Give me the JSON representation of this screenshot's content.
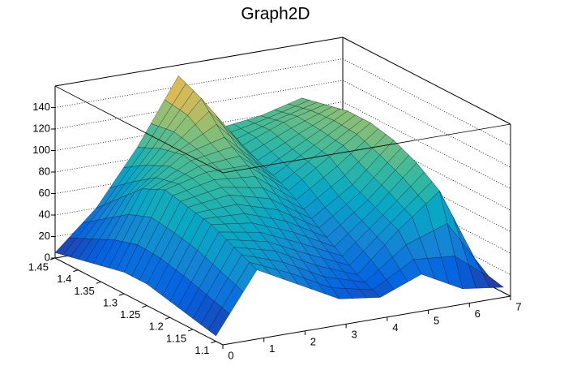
{
  "chart_data": {
    "type": "surface",
    "title": "Graph2D",
    "x": [
      0,
      1,
      2,
      3,
      4,
      5,
      6,
      7
    ],
    "y": [
      1.1,
      1.15,
      1.2,
      1.25,
      1.3,
      1.35,
      1.4,
      1.45
    ],
    "z": [
      [
        5,
        60,
        40,
        20,
        15,
        30,
        10,
        5
      ],
      [
        10,
        70,
        60,
        40,
        25,
        60,
        90,
        10
      ],
      [
        15,
        80,
        75,
        60,
        40,
        70,
        105,
        20
      ],
      [
        20,
        85,
        90,
        80,
        55,
        80,
        115,
        30
      ],
      [
        20,
        90,
        100,
        100,
        70,
        95,
        120,
        40
      ],
      [
        15,
        80,
        105,
        115,
        80,
        100,
        120,
        45
      ],
      [
        10,
        60,
        100,
        140,
        90,
        105,
        115,
        50
      ],
      [
        5,
        40,
        90,
        150,
        95,
        100,
        110,
        50
      ]
    ],
    "xlim": [
      0,
      7
    ],
    "ylim": [
      1.085,
      1.45
    ],
    "zlim": [
      0,
      160
    ],
    "xticks": [
      0,
      1,
      2,
      3,
      4,
      5,
      6,
      7
    ],
    "yticks": [
      1.1,
      1.15,
      1.2,
      1.25,
      1.3,
      1.35,
      1.4,
      1.45
    ],
    "zticks": [
      0,
      20,
      40,
      60,
      80,
      100,
      120,
      140
    ],
    "grid": true,
    "palette": "bird"
  }
}
